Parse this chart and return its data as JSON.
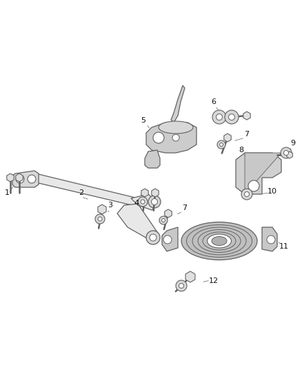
{
  "background_color": "#ffffff",
  "line_color": "#606060",
  "fig_width": 4.38,
  "fig_height": 5.33,
  "dpi": 100
}
